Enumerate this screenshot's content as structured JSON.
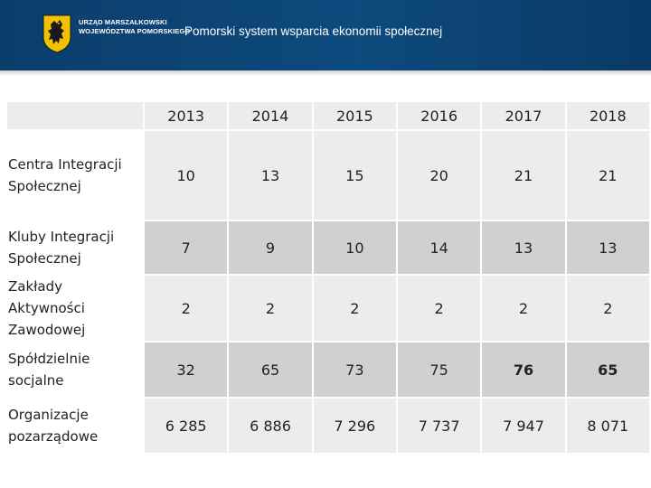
{
  "header": {
    "org_line_1": "URZĄD MARSZAŁKOWSKI",
    "org_line_2": "WOJEWÓDZTWA POMORSKIEGO",
    "title": "Pomorski system wsparcia ekonomii społecznej",
    "logo_icon": "pomorskie-griffin-coat-of-arms-icon",
    "header_color": "#0d4a7d"
  },
  "table": {
    "years": [
      "2013",
      "2014",
      "2015",
      "2016",
      "2017",
      "2018"
    ],
    "rows": [
      {
        "label": "Centra Integracji Społecznej",
        "values": [
          "10",
          "13",
          "15",
          "20",
          "21",
          "21"
        ]
      },
      {
        "label": "Kluby Integracji Społecznej",
        "values": [
          "7",
          "9",
          "10",
          "14",
          "13",
          "13"
        ]
      },
      {
        "label": "Zakłady Aktywności Zawodowej",
        "values": [
          "2",
          "2",
          "2",
          "2",
          "2",
          "2"
        ]
      },
      {
        "label": "Spółdzielnie socjalne",
        "values": [
          "32",
          "65",
          "73",
          "75",
          "76",
          "65"
        ]
      },
      {
        "label": "Organizacje pozarządowe",
        "values": [
          "6 285",
          "6 886",
          "7 296",
          "7 737",
          "7 947",
          "8 071"
        ]
      }
    ],
    "bold_cells": [
      "rows.3.values.4",
      "rows.3.values.5"
    ],
    "row_fill_light": "#ececec",
    "row_fill_dark": "#d0d0d0"
  }
}
